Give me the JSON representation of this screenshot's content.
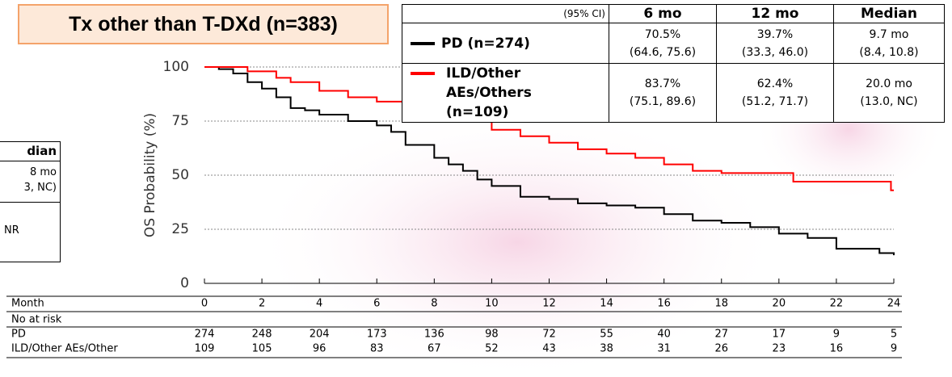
{
  "header": {
    "title": "Tx other than T-DXd (n=383)"
  },
  "chart_data": {
    "type": "line",
    "step": true,
    "ylabel": "OS Probability (%)",
    "xlabel": "Month",
    "xlim": [
      0,
      24
    ],
    "xticks": [
      0,
      2,
      4,
      6,
      8,
      10,
      12,
      14,
      16,
      18,
      20,
      22,
      24
    ],
    "ylim": [
      0,
      100
    ],
    "yticks": [
      0,
      25,
      50,
      75,
      100
    ],
    "grid": true,
    "series": [
      {
        "name": "PD (n=274)",
        "color": "#000000",
        "x": [
          0,
          0.5,
          1,
          1.5,
          2,
          2.5,
          3,
          3.5,
          4,
          5,
          6,
          6.5,
          7,
          8,
          8.5,
          9,
          9.5,
          10,
          11,
          12,
          13,
          14,
          15,
          16,
          17,
          18,
          19,
          20,
          21,
          22,
          23,
          23.5,
          24
        ],
        "values": [
          100,
          99,
          97,
          93,
          90,
          86,
          81,
          80,
          78,
          75,
          73,
          70,
          64,
          58,
          55,
          52,
          48,
          45,
          40,
          39,
          37,
          36,
          35,
          32,
          29,
          28,
          26,
          23,
          21,
          16,
          16,
          14,
          13
        ]
      },
      {
        "name": "ILD/Other AEs/Others (n=109)",
        "color": "#ff0000",
        "x": [
          0,
          1.5,
          2.5,
          3,
          4,
          5,
          6,
          7,
          8,
          9,
          10,
          11,
          12,
          13,
          14,
          15,
          16,
          17,
          18,
          19,
          20,
          20.5,
          23.5,
          23.9,
          24
        ],
        "values": [
          100,
          98,
          95,
          93,
          89,
          86,
          84,
          81,
          80,
          76,
          71,
          68,
          65,
          62,
          60,
          58,
          55,
          52,
          51,
          51,
          51,
          47,
          47,
          43,
          43
        ]
      }
    ],
    "risk_table": {
      "title": "No at risk",
      "rows": [
        {
          "name": "PD",
          "values": [
            274,
            248,
            204,
            173,
            136,
            98,
            72,
            55,
            40,
            27,
            17,
            9,
            5
          ]
        },
        {
          "name": "ILD/Other AEs/Other",
          "values": [
            109,
            105,
            96,
            83,
            67,
            52,
            43,
            38,
            31,
            26,
            23,
            16,
            9
          ]
        }
      ]
    }
  },
  "summary_table": {
    "columns": [
      "(95% CI)",
      "6 mo",
      "12 mo",
      "Median"
    ],
    "rows": [
      [
        [
          "70.5%",
          "(64.6, 75.6)"
        ],
        [
          "39.7%",
          "(33.3, 46.0)"
        ],
        [
          "9.7 mo",
          "(8.4, 10.8)"
        ]
      ],
      [
        [
          "83.7%",
          "(75.1, 89.6)"
        ],
        [
          "62.4%",
          "(51.2, 71.7)"
        ],
        [
          "20.0 mo",
          "(13.0, NC)"
        ]
      ]
    ]
  },
  "partial_table": {
    "header": "dian",
    "cells": [
      "8 mo",
      "3, NC)",
      "NR"
    ]
  }
}
